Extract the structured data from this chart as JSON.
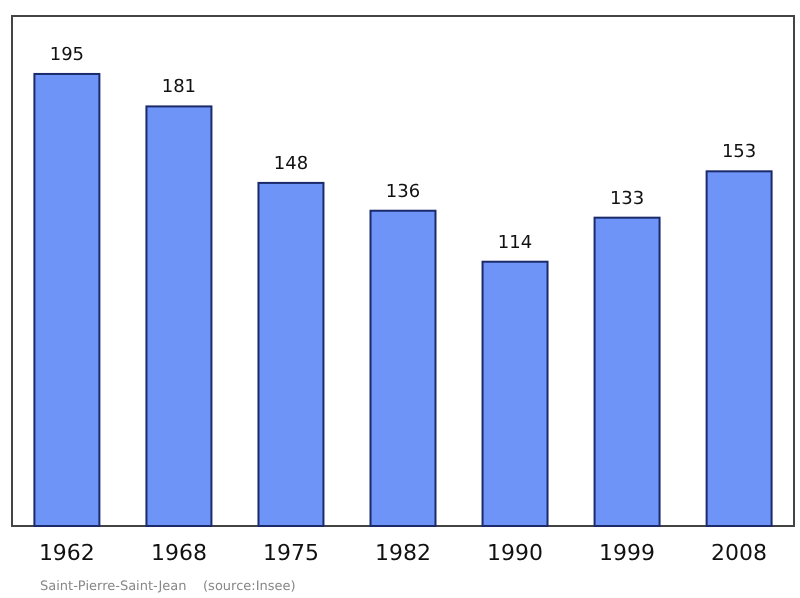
{
  "chart_data": {
    "type": "bar",
    "categories": [
      "1962",
      "1968",
      "1975",
      "1982",
      "1990",
      "1999",
      "2008"
    ],
    "values": [
      195,
      181,
      148,
      136,
      114,
      133,
      153
    ],
    "color": "#6f94f7",
    "ylim": [
      0,
      220
    ],
    "data_labels": true,
    "annotations": [
      "Saint-Pierre-Saint-Jean    (source:Insee)"
    ]
  }
}
